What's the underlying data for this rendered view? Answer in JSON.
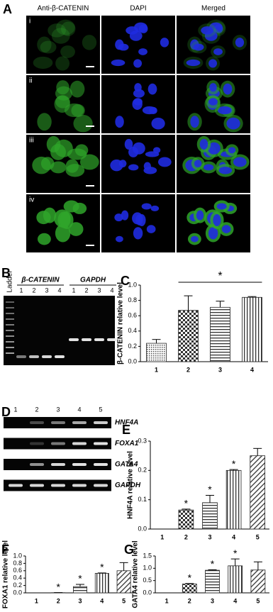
{
  "figure": {
    "panel_labels": [
      "A",
      "B",
      "C",
      "D",
      "E",
      "F",
      "G"
    ],
    "microscopy": {
      "columns": [
        "Anti-β-CATENIN",
        "DAPI",
        "Merged"
      ],
      "rows": [
        "i",
        "ii",
        "iii",
        "iv"
      ]
    },
    "gel_b": {
      "ladder": "Ladder",
      "groups": [
        {
          "name": "β-CATENIN",
          "lanes": [
            "1",
            "2",
            "3",
            "4"
          ]
        },
        {
          "name": "GAPDH",
          "lanes": [
            "1",
            "2",
            "3",
            "4"
          ]
        }
      ]
    },
    "gel_d": {
      "lanes": [
        "1",
        "2",
        "3",
        "4",
        "5"
      ],
      "genes": [
        "HNF4A",
        "FOXA1",
        "GATA4",
        "GAPDH"
      ]
    }
  },
  "chart_data": [
    {
      "type": "bar",
      "ylabel": "β-CATENIN relative level",
      "categories": [
        "1",
        "2",
        "3",
        "4"
      ],
      "values": [
        0.24,
        0.67,
        0.71,
        0.84
      ],
      "errors": [
        0.05,
        0.19,
        0.08,
        0.01
      ],
      "ylim": [
        0,
        1
      ],
      "yticks": [
        {
          "value": 0,
          "label": "0.0"
        },
        0.2,
        0.4,
        0.6,
        0.8,
        {
          "value": 1,
          "label": "1.0"
        }
      ],
      "bracket": {
        "label": "*",
        "span": [
          "2",
          "4"
        ]
      }
    },
    {
      "type": "bar",
      "ylabel": "HNF4A relative level",
      "categories": [
        "1",
        "2",
        "3",
        "4",
        "5"
      ],
      "values": [
        0,
        0.065,
        0.09,
        0.2,
        0.25
      ],
      "errors": [
        0,
        0.003,
        0.025,
        0.003,
        0.025
      ],
      "ylim": [
        0,
        0.3
      ],
      "yticks": [
        {
          "value": 0,
          "label": "0.0"
        },
        0.1,
        0.2,
        0.3
      ],
      "significance": [
        null,
        "*",
        "*",
        "*",
        null
      ]
    },
    {
      "type": "bar",
      "ylabel": "FOXA1 relative level",
      "categories": [
        "1",
        "2",
        "3",
        "4",
        "5"
      ],
      "values": [
        0,
        0.005,
        0.17,
        0.53,
        0.6
      ],
      "errors": [
        0,
        0.002,
        0.06,
        0.01,
        0.22
      ],
      "ylim": [
        0,
        1
      ],
      "yticks": [
        {
          "value": 0,
          "label": "0.0"
        },
        0.2,
        0.4,
        0.6,
        0.8,
        {
          "value": 1,
          "label": "1.0"
        }
      ],
      "significance": [
        null,
        "*",
        "*",
        "*",
        null
      ]
    },
    {
      "type": "bar",
      "ylabel": "GATA4 relative level",
      "categories": [
        "1",
        "2",
        "3",
        "4",
        "5"
      ],
      "values": [
        0,
        0.36,
        0.92,
        1.1,
        0.93
      ],
      "errors": [
        0,
        0.02,
        0.02,
        0.28,
        0.33
      ],
      "ylim": [
        0,
        1.5
      ],
      "yticks": [
        {
          "value": 0,
          "label": "0.0"
        },
        0.5,
        {
          "value": 1,
          "label": "1.0"
        },
        1.5
      ],
      "significance": [
        null,
        "*",
        "*",
        "*",
        null
      ]
    }
  ]
}
